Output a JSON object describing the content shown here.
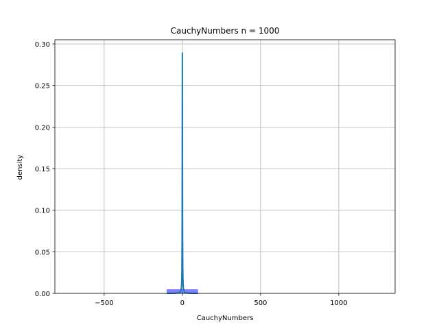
{
  "chart_data": {
    "type": "histogram",
    "title": "CauchyNumbers n = 1000",
    "xlabel": "CauchyNumbers",
    "ylabel": "density",
    "xlim": [
      -815,
      1360
    ],
    "ylim": [
      0,
      0.305
    ],
    "x_ticks": [
      -500,
      0,
      500,
      1000
    ],
    "x_tick_labels": [
      "−500",
      "0",
      "500",
      "1000"
    ],
    "y_ticks": [
      0.0,
      0.05,
      0.1,
      0.15,
      0.2,
      0.25,
      0.3
    ],
    "y_tick_labels": [
      "0.00",
      "0.05",
      "0.10",
      "0.15",
      "0.20",
      "0.25",
      "0.30"
    ],
    "grid": true,
    "histogram": {
      "color": "#0000ff",
      "opacity": 0.5,
      "bins": [
        {
          "x0": -100,
          "x1": 100,
          "density": 0.0049
        }
      ]
    },
    "density_curve": {
      "color": "#1f77b4",
      "x": [
        -100,
        -50,
        -30,
        -20,
        -15,
        -10,
        -7,
        -5,
        -4,
        -3,
        -2,
        -1.5,
        -1,
        -0.5,
        0,
        0.5,
        1,
        1.5,
        2,
        3,
        4,
        5,
        7,
        10,
        15,
        20,
        30,
        50,
        100
      ],
      "y": [
        0.0,
        0.0001,
        0.0004,
        0.0008,
        0.0014,
        0.003,
        0.006,
        0.011,
        0.017,
        0.028,
        0.055,
        0.085,
        0.14,
        0.23,
        0.289,
        0.23,
        0.14,
        0.085,
        0.055,
        0.028,
        0.017,
        0.011,
        0.006,
        0.003,
        0.0014,
        0.0008,
        0.0004,
        0.0001,
        0.0
      ]
    }
  }
}
